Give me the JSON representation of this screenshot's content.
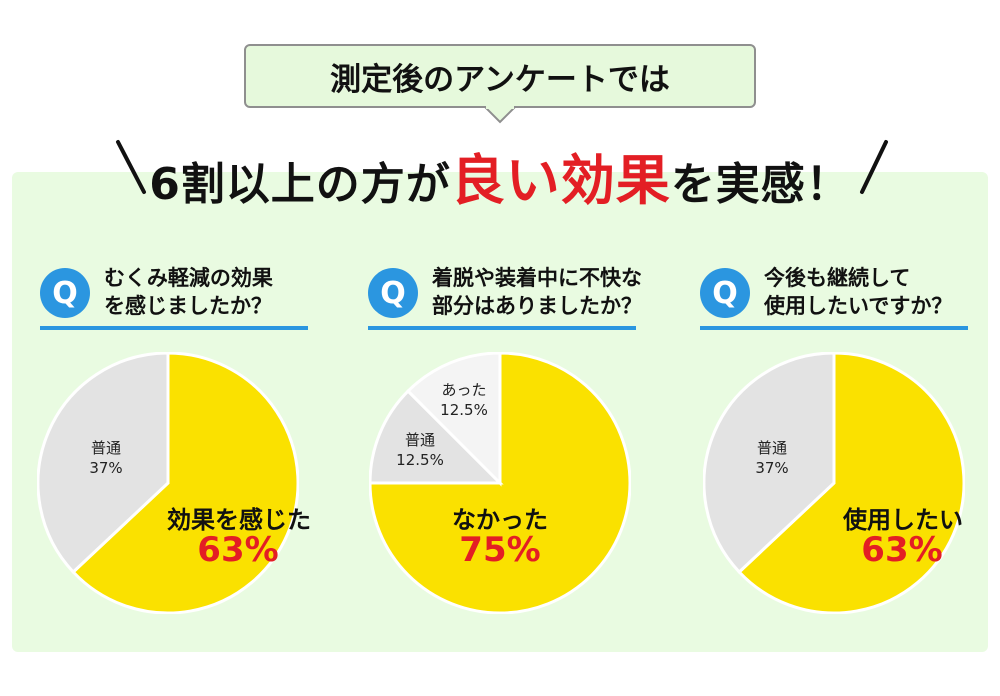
{
  "bubble": {
    "text": "測定後のアンケートでは"
  },
  "headline": {
    "part1": "6割以上の方が",
    "accent": "良い効果",
    "part2": "を実感！"
  },
  "colors": {
    "yellow": "#fae100",
    "gray": "#e3e3e3",
    "light": "#f4f4f4",
    "blue": "#2b96e0",
    "red": "#e31e24",
    "panel": "#e9fbe1"
  },
  "chart_data": [
    {
      "type": "pie",
      "title": "むくみ軽減の効果を感じましたか？",
      "q_lines": [
        "むくみ軽減の効果",
        "を感じましたか？"
      ],
      "slices": [
        {
          "label": "効果を感じた",
          "value": 63,
          "display": "63%",
          "color": "#fae100"
        },
        {
          "label": "普通",
          "value": 37,
          "display": "37%",
          "color": "#e3e3e3"
        }
      ]
    },
    {
      "type": "pie",
      "title": "着脱や装着中に不快な部分はありましたか？",
      "q_lines": [
        "着脱や装着中に不快な",
        "部分はありましたか？"
      ],
      "slices": [
        {
          "label": "なかった",
          "value": 75,
          "display": "75%",
          "color": "#fae100"
        },
        {
          "label": "普通",
          "value": 12.5,
          "display": "12.5%",
          "color": "#e3e3e3"
        },
        {
          "label": "あった",
          "value": 12.5,
          "display": "12.5%",
          "color": "#f4f4f4"
        }
      ]
    },
    {
      "type": "pie",
      "title": "今後も継続して使用したいですか？",
      "q_lines": [
        "今後も継続して",
        "使用したいですか？"
      ],
      "slices": [
        {
          "label": "使用したい",
          "value": 63,
          "display": "63%",
          "color": "#fae100"
        },
        {
          "label": "普通",
          "value": 37,
          "display": "37%",
          "color": "#e3e3e3"
        }
      ]
    }
  ],
  "q_badge": "Q"
}
